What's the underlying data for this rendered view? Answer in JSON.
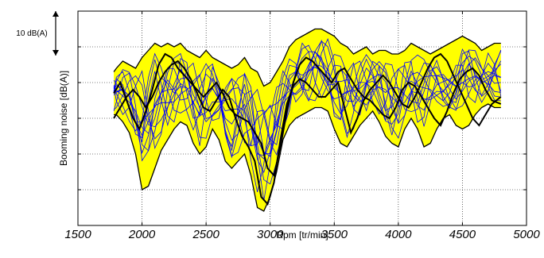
{
  "chart_data": {
    "type": "line",
    "title": "",
    "xlabel": "Rpm [tr/min]",
    "ylabel": "Booming noise [dB(A)]",
    "xlim": [
      1500,
      5000
    ],
    "ylim": [
      0,
      60
    ],
    "x_ticks": [
      1500,
      2000,
      2500,
      3000,
      3500,
      4000,
      4500,
      5000
    ],
    "x_tick_labels": [
      "1500",
      "2000",
      "2500",
      "3000",
      "3500",
      "4000",
      "4500",
      "5000"
    ],
    "y_ticks": [
      10,
      20,
      30,
      40,
      50
    ],
    "y_tick_labels": [
      "",
      "",
      "",
      "",
      ""
    ],
    "grid": true,
    "scale_bar": {
      "label": "10 dB(A)",
      "span": 10
    },
    "colors": {
      "envelope_fill": "#ffff00",
      "envelope_edge": "#000000",
      "curves": "#0000ff",
      "highlight": "#000000",
      "grid": "#000000"
    },
    "envelope": {
      "x": [
        1780,
        1800,
        1850,
        1900,
        1950,
        2000,
        2050,
        2100,
        2150,
        2200,
        2250,
        2300,
        2350,
        2400,
        2450,
        2500,
        2550,
        2600,
        2650,
        2700,
        2750,
        2800,
        2850,
        2900,
        2950,
        3000,
        3050,
        3100,
        3150,
        3200,
        3250,
        3300,
        3350,
        3400,
        3450,
        3500,
        3550,
        3600,
        3650,
        3700,
        3750,
        3800,
        3850,
        3900,
        3950,
        4000,
        4050,
        4100,
        4150,
        4200,
        4250,
        4300,
        4350,
        4400,
        4450,
        4500,
        4550,
        4600,
        4650,
        4700,
        4750,
        4800
      ],
      "upper": [
        43,
        44,
        46,
        45,
        44,
        47,
        49,
        51,
        50,
        51,
        50,
        51,
        49,
        48,
        47,
        49,
        47,
        46,
        45,
        44,
        45,
        47,
        44,
        43,
        39,
        40,
        43,
        46,
        50,
        52,
        53,
        54,
        55,
        55,
        54,
        53,
        51,
        50,
        48,
        49,
        50,
        48,
        49,
        49,
        48,
        48,
        49,
        51,
        50,
        49,
        48,
        49,
        50,
        51,
        52,
        53,
        52,
        51,
        49,
        50,
        51,
        51
      ],
      "lower": [
        31,
        31,
        29,
        26,
        20,
        10,
        11,
        16,
        21,
        24,
        27,
        29,
        28,
        23,
        20,
        22,
        27,
        24,
        18,
        16,
        18,
        20,
        14,
        5,
        4,
        8,
        15,
        24,
        28,
        30,
        31,
        32,
        33,
        33,
        32,
        27,
        23,
        22,
        25,
        28,
        30,
        32,
        29,
        25,
        23,
        22,
        27,
        30,
        27,
        22,
        23,
        27,
        30,
        31,
        28,
        27,
        28,
        31,
        33,
        34,
        33,
        33
      ]
    },
    "highlight_series": [
      {
        "x": [
          1780,
          1830,
          1880,
          1930,
          1980,
          2030,
          2080,
          2130,
          2180,
          2230,
          2280,
          2330,
          2380,
          2430,
          2480,
          2530,
          2580,
          2630,
          2680,
          2730,
          2780,
          2830,
          2880,
          2930,
          2980,
          3030,
          3080,
          3130,
          3180,
          3230,
          3280,
          3330,
          3380,
          3430,
          3480,
          3530,
          3580,
          3630,
          3680,
          3730,
          3780,
          3830,
          3880,
          3930,
          3980,
          4030,
          4080,
          4130,
          4180,
          4230,
          4280,
          4330,
          4380,
          4430,
          4480,
          4530,
          4580,
          4630,
          4680,
          4730,
          4800
        ],
        "values": [
          37,
          40,
          35,
          30,
          27,
          32,
          38,
          45,
          48,
          47,
          44,
          42,
          40,
          38,
          36,
          38,
          40,
          37,
          33,
          31,
          30,
          29,
          26,
          23,
          16,
          14,
          22,
          32,
          40,
          45,
          47,
          46,
          44,
          42,
          40,
          43,
          44,
          41,
          38,
          36,
          35,
          33,
          31,
          30,
          33,
          38,
          40,
          39,
          36,
          33,
          30,
          28,
          32,
          37,
          41,
          43,
          44,
          42,
          38,
          35,
          34
        ]
      },
      {
        "x": [
          1780,
          1830,
          1880,
          1930,
          1980,
          2030,
          2080,
          2130,
          2180,
          2230,
          2280,
          2330,
          2380,
          2430,
          2480,
          2530,
          2580,
          2630,
          2680,
          2730,
          2780,
          2830,
          2880,
          2930,
          2980,
          3030,
          3080,
          3130,
          3180,
          3230,
          3280,
          3330,
          3380,
          3430,
          3480,
          3530,
          3580,
          3630,
          3680,
          3730,
          3780,
          3830,
          3880,
          3930,
          3980,
          4030,
          4080,
          4130,
          4180,
          4230,
          4280,
          4330,
          4380,
          4430,
          4480,
          4530,
          4580,
          4630,
          4680,
          4730,
          4800
        ],
        "values": [
          30,
          33,
          36,
          38,
          36,
          33,
          36,
          40,
          43,
          45,
          46,
          44,
          41,
          37,
          33,
          32,
          35,
          38,
          36,
          30,
          25,
          22,
          18,
          8,
          6,
          12,
          24,
          34,
          39,
          41,
          40,
          38,
          36,
          36,
          38,
          40,
          33,
          26,
          30,
          35,
          38,
          40,
          42,
          40,
          37,
          34,
          33,
          36,
          40,
          44,
          47,
          48,
          46,
          42,
          38,
          34,
          30,
          28,
          31,
          34,
          36
        ]
      }
    ],
    "series_count_blue": 12
  }
}
